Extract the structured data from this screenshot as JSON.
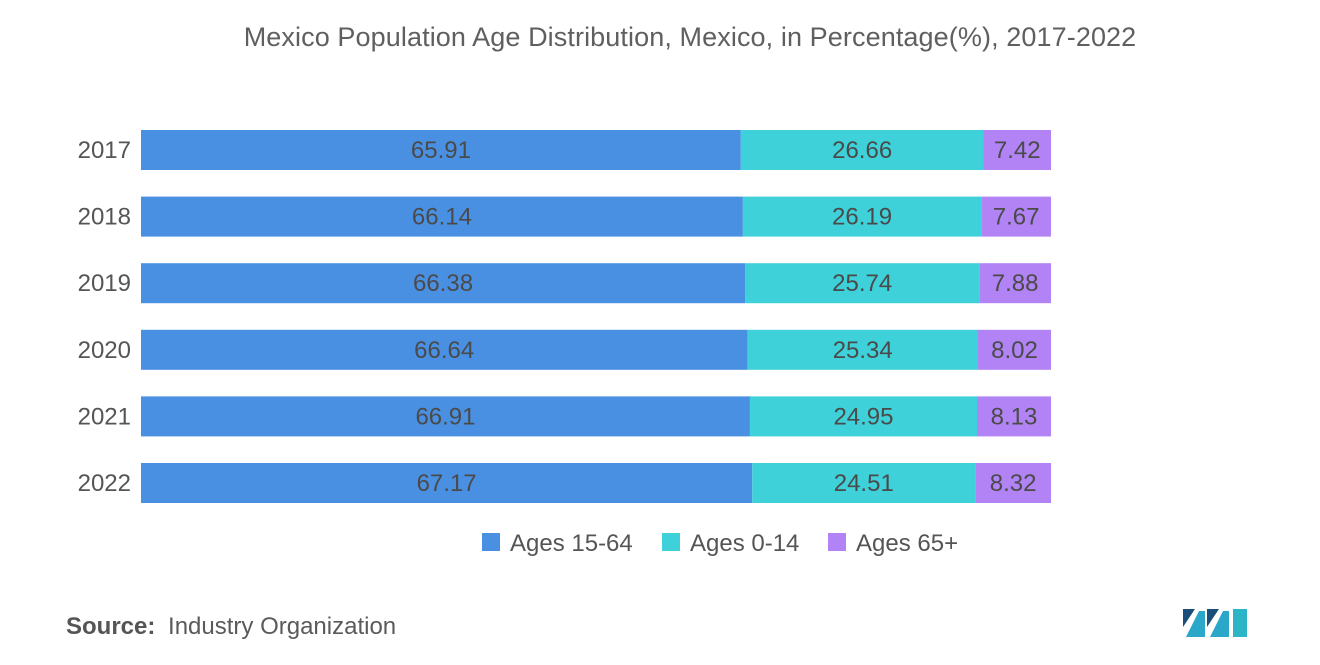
{
  "colors": {
    "series": [
      "#4a90e2",
      "#3fd1d9",
      "#b183f5"
    ]
  },
  "chart_data": {
    "type": "bar",
    "orientation": "horizontal",
    "stacked": true,
    "title": "Mexico Population Age Distribution, Mexico, in Percentage(%), 2017-2022",
    "categories": [
      "2017",
      "2018",
      "2019",
      "2020",
      "2021",
      "2022"
    ],
    "series": [
      {
        "name": "Ages 15-64",
        "values": [
          65.91,
          66.14,
          66.38,
          66.64,
          66.91,
          67.17
        ]
      },
      {
        "name": "Ages 0-14",
        "values": [
          26.66,
          26.19,
          25.74,
          25.34,
          24.95,
          24.51
        ]
      },
      {
        "name": "Ages 65+",
        "values": [
          7.42,
          7.67,
          7.88,
          8.02,
          8.13,
          8.32
        ]
      }
    ],
    "value_labels": [
      [
        "65.91",
        "66.14",
        "66.38",
        "66.64",
        "66.91",
        "67.17"
      ],
      [
        "26.66",
        "26.19",
        "25.74",
        "25.34",
        "24.95",
        "24.51"
      ],
      [
        "7.42",
        "7.67",
        "7.88",
        "8.02",
        "8.13",
        "8.32"
      ]
    ],
    "xlim": [
      0,
      100
    ],
    "xlabel": "",
    "ylabel": "",
    "grid": false,
    "legend_position": "bottom"
  },
  "source": {
    "label": "Source:",
    "text": "Industry Organization"
  },
  "logo": {
    "icon": "mordor-intelligence-logo"
  }
}
